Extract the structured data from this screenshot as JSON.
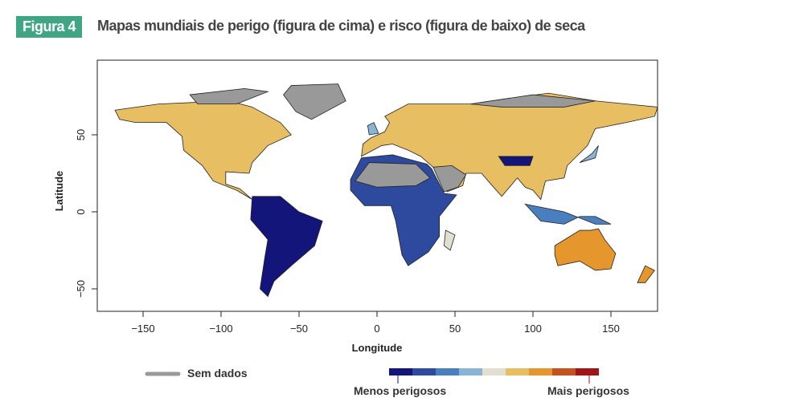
{
  "figure": {
    "badge": "Figura 4",
    "title": "Mapas mundiais de perigo (figura de cima) e risco (figura de baixo) de seca"
  },
  "chart_data": {
    "type": "map",
    "xlabel": "Longitude",
    "ylabel": "Latitude",
    "xlim": [
      -180,
      180
    ],
    "ylim": [
      -65,
      95
    ],
    "xticks": [
      -150,
      -100,
      -50,
      0,
      50,
      100,
      150
    ],
    "yticks": [
      -50,
      0,
      50
    ],
    "legend": {
      "no_data_label": "Sem dados",
      "no_data_color": "#999999",
      "scale_colors": [
        "#14157a",
        "#2d4a9e",
        "#4a7fbf",
        "#8ab4d6",
        "#e2ded2",
        "#e8be62",
        "#e5962d",
        "#c4521e",
        "#a01518"
      ],
      "low_label": "Menos perigosos",
      "high_label": "Mais perigosos"
    }
  }
}
